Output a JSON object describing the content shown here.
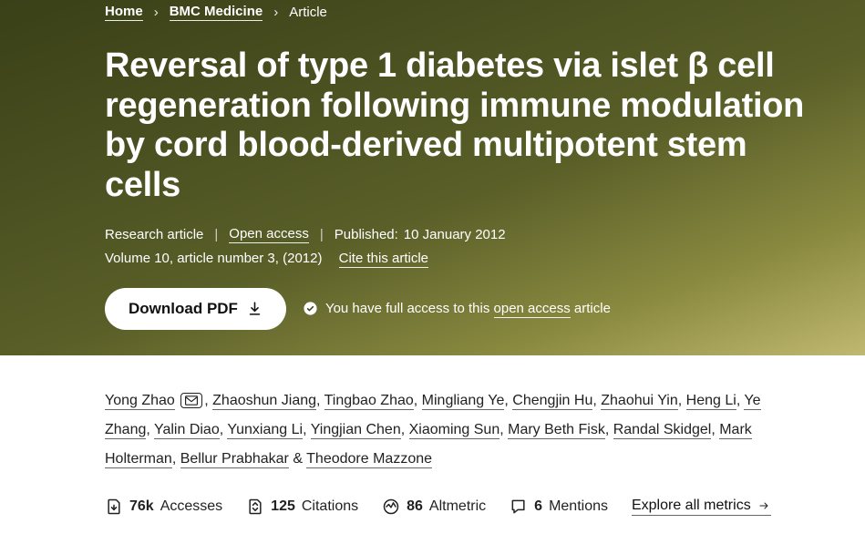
{
  "breadcrumb": {
    "home": "Home",
    "journal": "BMC Medicine",
    "current": "Article"
  },
  "title": "Reversal of type 1 diabetes via islet β cell regeneration following immune modulation by cord blood-derived multipotent stem cells",
  "meta": {
    "type": "Research article",
    "access": "Open access",
    "published_label": "Published:",
    "published_date": "10 January 2012",
    "volume_line": "Volume 10, article number 3, (2012)",
    "cite": "Cite this article"
  },
  "download_label": "Download PDF",
  "access_note": {
    "prefix": "You have full access to this ",
    "link": "open access",
    "suffix": " article"
  },
  "authors": {
    "corresponding": "Yong Zhao",
    "list": [
      "Zhaoshun Jiang",
      "Tingbao Zhao",
      "Mingliang Ye",
      "Chengjin Hu",
      "Zhaohui Yin",
      "Heng Li",
      "Ye Zhang",
      "Yalin Diao",
      "Yunxiang Li",
      "Yingjian Chen",
      "Xiaoming Sun",
      "Mary Beth Fisk",
      "Randal Skidgel",
      "Mark Holterman",
      "Bellur Prabhakar"
    ],
    "last": "Theodore Mazzone"
  },
  "metrics": {
    "accesses": {
      "value": "76k",
      "label": "Accesses"
    },
    "citations": {
      "value": "125",
      "label": "Citations"
    },
    "altmetric": {
      "value": "86",
      "label": "Altmetric"
    },
    "mentions": {
      "value": "6",
      "label": "Mentions"
    },
    "explore": "Explore all metrics "
  }
}
